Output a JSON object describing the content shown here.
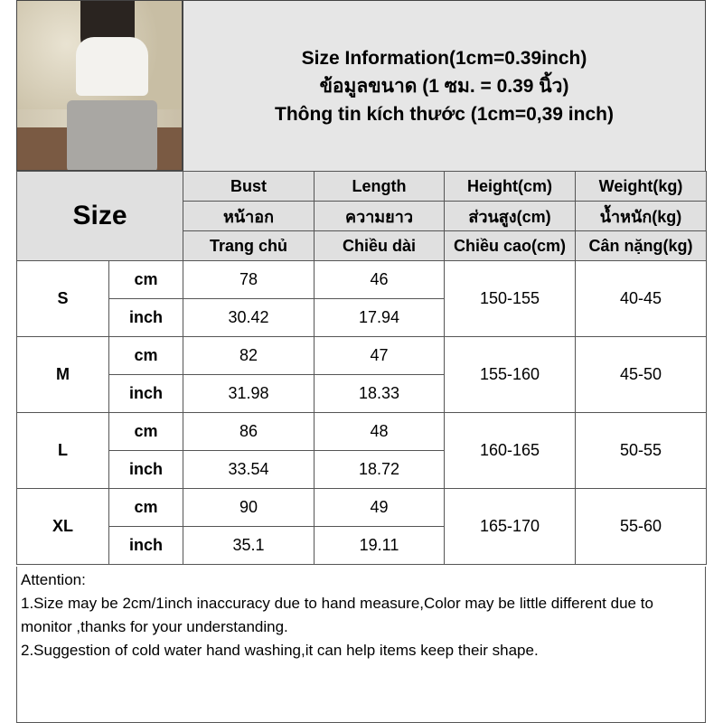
{
  "header": {
    "line1": "Size Information(1cm=0.39inch)",
    "line2": "ข้อมูลขนาด (1 ซม. = 0.39 นิ้ว)",
    "line3": "Thông tin kích thước (1cm=0,39 inch)"
  },
  "table": {
    "size_label": "Size",
    "columns": [
      {
        "en": "Bust",
        "th": "หน้าอก",
        "vi": "Trang chủ"
      },
      {
        "en": "Length",
        "th": "ความยาว",
        "vi": "Chiều dài"
      },
      {
        "en": "Height(cm)",
        "th": "ส่วนสูง(cm)",
        "vi": "Chiều cao(cm)"
      },
      {
        "en": "Weight(kg)",
        "th": "น้ำหนัก(kg)",
        "vi": "Cân nặng(kg)"
      }
    ],
    "rows": [
      {
        "size": "S",
        "unit1": "cm",
        "unit2": "inch",
        "bust_cm": "78",
        "len_cm": "46",
        "bust_in": "30.42",
        "len_in": "17.94",
        "height": "150-155",
        "weight": "40-45"
      },
      {
        "size": "M",
        "unit1": "cm",
        "unit2": "inch",
        "bust_cm": "82",
        "len_cm": "47",
        "bust_in": "31.98",
        "len_in": "18.33",
        "height": "155-160",
        "weight": "45-50"
      },
      {
        "size": "L",
        "unit1": "cm",
        "unit2": "inch",
        "bust_cm": "86",
        "len_cm": "48",
        "bust_in": "33.54",
        "len_in": "18.72",
        "height": "160-165",
        "weight": "50-55"
      },
      {
        "size": "XL",
        "unit1": "cm",
        "unit2": "inch",
        "bust_cm": "90",
        "len_cm": "49",
        "bust_in": "35.1",
        "len_in": "19.11",
        "height": "165-170",
        "weight": "55-60"
      }
    ]
  },
  "attention": {
    "title": "Attention:",
    "note1": "1.Size may be 2cm/1inch inaccuracy due to hand measure,Color may be little different due to monitor ,thanks for your understanding.",
    "note2": "2.Suggestion of cold water hand washing,it can help items keep their shape."
  }
}
